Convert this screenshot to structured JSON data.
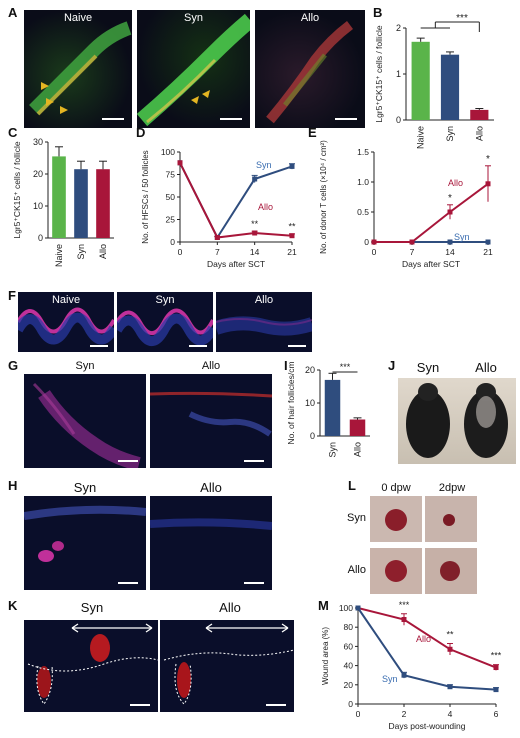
{
  "panels": {
    "A": {
      "letter": "A",
      "labels": [
        "Naive",
        "Syn",
        "Allo"
      ]
    },
    "F": {
      "letter": "F",
      "labels": [
        "Naive",
        "Syn",
        "Allo"
      ]
    },
    "G": {
      "letter": "G",
      "labels": [
        "Syn",
        "Allo"
      ]
    },
    "H": {
      "letter": "H",
      "labels": [
        "Syn",
        "Allo"
      ]
    },
    "J": {
      "letter": "J",
      "labels": [
        "Syn",
        "Allo"
      ]
    },
    "K": {
      "letter": "K",
      "labels": [
        "Syn",
        "Allo"
      ]
    },
    "L": {
      "letter": "L",
      "col_labels": [
        "0 dpw",
        "2dpw"
      ],
      "row_labels": [
        "Syn",
        "Allo"
      ]
    }
  },
  "colors": {
    "naive": "#5ab44a",
    "syn": "#2f4d7e",
    "allo": "#a8163a",
    "syn_text": "#3a6db0",
    "allo_text": "#a8163a"
  },
  "chart_data": [
    {
      "id": "B",
      "letter": "B",
      "type": "bar",
      "categories": [
        "Naive",
        "Syn",
        "Allo"
      ],
      "values": [
        1.7,
        1.42,
        0.22
      ],
      "errors": [
        0.08,
        0.06,
        0.03
      ],
      "ylabel": "Lgr5⁺CK15⁺ cells / follicle",
      "ylim": [
        0,
        2
      ],
      "yticks": [
        "0",
        "1",
        "2"
      ],
      "significance": "***"
    },
    {
      "id": "C",
      "letter": "C",
      "type": "bar",
      "categories": [
        "Naive",
        "Syn",
        "Allo"
      ],
      "values": [
        25.5,
        21.5,
        21.5
      ],
      "errors": [
        3,
        2.5,
        2.5
      ],
      "ylabel": "Lgr5⁺CK15⁺ cells / follicle",
      "ylim": [
        0,
        30
      ],
      "yticks": [
        "0",
        "10",
        "20",
        "30"
      ]
    },
    {
      "id": "D",
      "letter": "D",
      "type": "line",
      "x": [
        0,
        7,
        14,
        21
      ],
      "series": [
        {
          "name": "Syn",
          "values": [
            88,
            5,
            70,
            84
          ],
          "errors": [
            0,
            1,
            4,
            3
          ]
        },
        {
          "name": "Allo",
          "values": [
            88,
            5,
            10,
            7
          ],
          "errors": [
            0,
            1,
            2,
            2
          ]
        }
      ],
      "xlabel": "Days after SCT",
      "ylabel": "No. of HFSCs / 50 follicles",
      "ylim": [
        0,
        100
      ],
      "yticks": [
        "0",
        "25",
        "50",
        "75",
        "100"
      ],
      "xticks": [
        "0",
        "7",
        "14",
        "21"
      ],
      "annotations": [
        "**",
        "**"
      ]
    },
    {
      "id": "E",
      "letter": "E",
      "type": "line",
      "x": [
        0,
        7,
        14,
        21
      ],
      "series": [
        {
          "name": "Syn",
          "values": [
            0,
            0,
            0,
            0
          ],
          "errors": [
            0,
            0,
            0,
            0
          ]
        },
        {
          "name": "Allo",
          "values": [
            0,
            0,
            0.5,
            0.97
          ],
          "errors": [
            0,
            0,
            0.12,
            0.3
          ]
        }
      ],
      "xlabel": "Days after SCT",
      "ylabel": "No. of donor T cells (×10⁴ / cm²)",
      "ylim": [
        0,
        1.5
      ],
      "yticks": [
        "0",
        "0.5",
        "1.0",
        "1.5"
      ],
      "xticks": [
        "0",
        "7",
        "14",
        "21"
      ],
      "annotations": [
        "*",
        "*"
      ]
    },
    {
      "id": "I",
      "letter": "I",
      "type": "bar",
      "categories": [
        "Syn",
        "Allo"
      ],
      "values": [
        17,
        5
      ],
      "errors": [
        2,
        0.5
      ],
      "ylabel": "No. of hair follicles/cm",
      "ylim": [
        0,
        20
      ],
      "yticks": [
        "0",
        "10",
        "20"
      ],
      "significance": "***"
    },
    {
      "id": "M",
      "letter": "M",
      "type": "line",
      "x": [
        0,
        2,
        4,
        6
      ],
      "series": [
        {
          "name": "Allo",
          "values": [
            100,
            88,
            57,
            38
          ],
          "errors": [
            0,
            6,
            6,
            3
          ]
        },
        {
          "name": "Syn",
          "values": [
            100,
            30,
            18,
            15
          ],
          "errors": [
            0,
            3,
            2,
            2
          ]
        }
      ],
      "xlabel": "Days post-wounding",
      "ylabel": "Wound area (%)",
      "ylim": [
        0,
        100
      ],
      "yticks": [
        "0",
        "20",
        "40",
        "60",
        "80",
        "100"
      ],
      "xticks": [
        "0",
        "2",
        "4",
        "6"
      ],
      "annotations": [
        "***",
        "**",
        "***"
      ]
    }
  ]
}
